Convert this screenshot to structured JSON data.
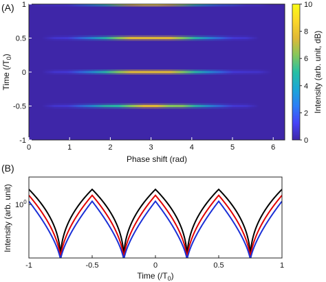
{
  "chart_data": [
    {
      "panel": "(A)",
      "type": "heatmap",
      "xlabel": "Phase shift (rad)",
      "ylabel_main": "Time (/T",
      "ylabel_sub": "0",
      "ylabel_end": ")",
      "xlim": [
        0,
        6.283
      ],
      "ylim": [
        -1,
        1
      ],
      "x_ticks": [
        0,
        1,
        2,
        3,
        4,
        5,
        6
      ],
      "y_ticks": [
        -1,
        -0.5,
        0,
        0.5,
        1
      ],
      "x_tick_labels": [
        "0",
        "1",
        "2",
        "3",
        "4",
        "5",
        "6"
      ],
      "y_tick_labels": [
        "-1",
        "-0.5",
        "0",
        "0.5",
        "1"
      ],
      "bands": [
        {
          "t": 1.0,
          "peak_phase": 3.0,
          "peak_intensity": 8.5
        },
        {
          "t": 0.5,
          "peak_phase": 3.0,
          "peak_intensity": 7.5
        },
        {
          "t": 0.0,
          "peak_phase": 3.0,
          "peak_intensity": 8.0
        },
        {
          "t": -0.5,
          "peak_phase": 3.0,
          "peak_intensity": 7.0
        }
      ],
      "colorbar": {
        "label": "Intensity (arb. unit, dB)",
        "range": [
          0,
          10
        ],
        "ticks": [
          0,
          2,
          4,
          6,
          8,
          10
        ],
        "tick_labels": [
          "0",
          "2",
          "4",
          "6",
          "8",
          "10"
        ],
        "colormap": [
          "#3e26a8",
          "#4743f8",
          "#2d7ef6",
          "#1ba7d6",
          "#27c0a4",
          "#86c75b",
          "#e0b936",
          "#fbd729",
          "#f9fb15"
        ]
      }
    },
    {
      "panel": "(B)",
      "type": "line",
      "xlabel_main": "Time (/T",
      "xlabel_sub": "0",
      "xlabel_end": ")",
      "ylabel": "Intensity (arb. unit)",
      "xlim": [
        -1,
        1
      ],
      "x_ticks": [
        -1,
        -0.5,
        0,
        0.5,
        1
      ],
      "x_tick_labels": [
        "-1",
        "-0.5",
        "0",
        "0.5",
        "1"
      ],
      "y_tick_label_base": "10",
      "y_tick_label_exp": "0",
      "pulse_period": 0.5,
      "peak_times": [
        -1,
        -0.5,
        0,
        0.5,
        1
      ],
      "series": [
        {
          "color": "#000000",
          "peak": 1.2,
          "width": 0.22
        },
        {
          "color": "#e00000",
          "peak": 1.1,
          "width": 0.18
        },
        {
          "color": "#1a2fd6",
          "peak": 1.0,
          "width": 0.14
        }
      ]
    }
  ]
}
